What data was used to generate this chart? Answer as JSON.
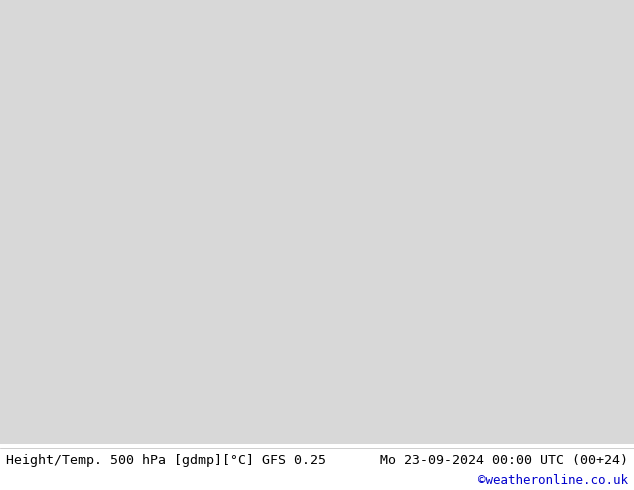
{
  "title_left": "Height/Temp. 500 hPa [gdmp][°C] GFS 0.25",
  "title_right": "Mo 23-09-2024 00:00 UTC (00+24)",
  "credit": "©weatheronline.co.uk",
  "bg_color": "#ffffff",
  "land_color": "#c8e8a0",
  "ocean_color": "#e8e8e8",
  "figure_width": 6.34,
  "figure_height": 4.9,
  "dpi": 100,
  "text_fontsize": 9.5,
  "credit_fontsize": 9,
  "credit_color": "#0000cc",
  "text_color": "#000000",
  "extent": [
    -55,
    55,
    25,
    72
  ],
  "black_lw": 1.6,
  "black_lw_bold": 2.8,
  "temp_lw": 1.4
}
